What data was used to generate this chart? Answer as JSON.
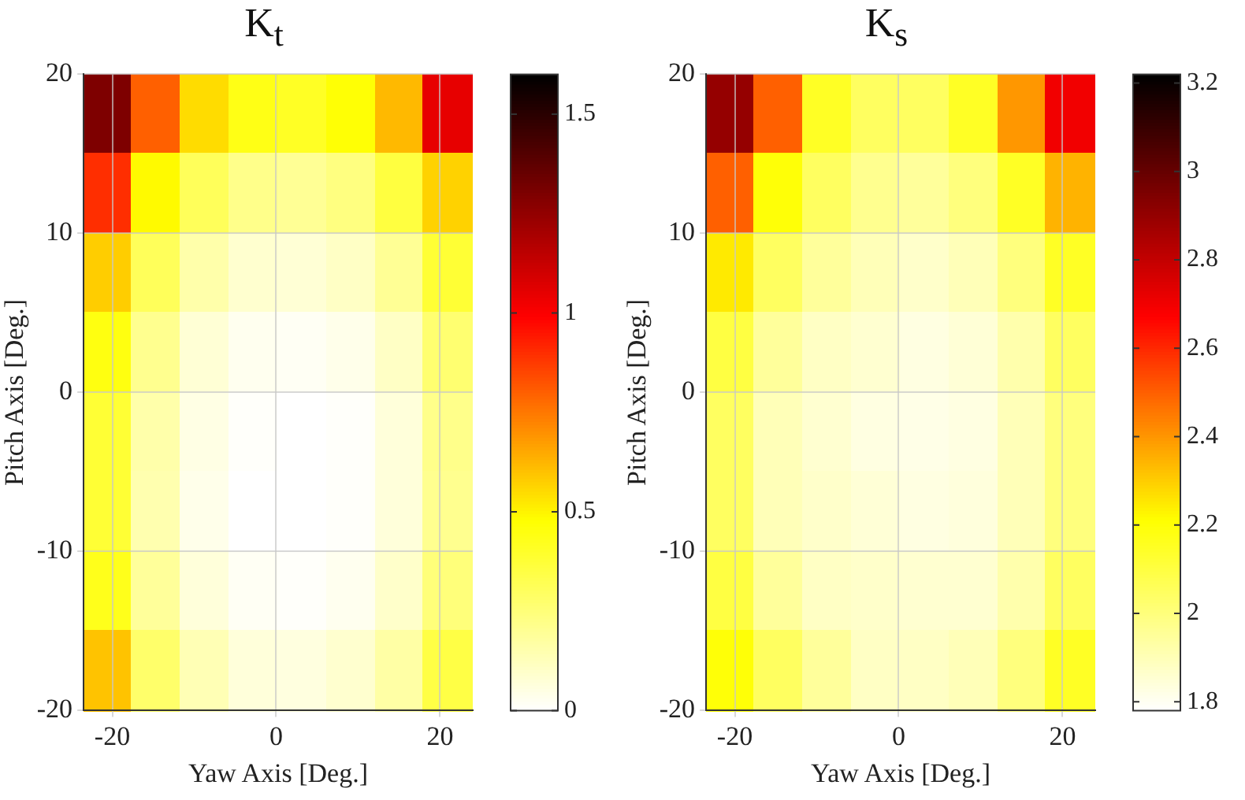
{
  "chart_data": [
    {
      "type": "heatmap",
      "title": "K$_{t}$",
      "xlabel": "Yaw Axis [Deg.]",
      "ylabel": "Pitch Axis [Deg.]",
      "x": [
        -20.5,
        -14.6,
        -8.7,
        -2.7,
        3.2,
        9.2,
        15.1,
        21.0
      ],
      "y": [
        17.5,
        12.5,
        7.5,
        2.5,
        -2.5,
        -7.5,
        -12.5,
        -17.5
      ],
      "cells": [
        [
          1.3,
          0.8,
          0.55,
          0.44,
          0.41,
          0.47,
          0.62,
          1.05
        ],
        [
          0.9,
          0.49,
          0.31,
          0.22,
          0.2,
          0.24,
          0.36,
          0.57
        ],
        [
          0.58,
          0.31,
          0.16,
          0.09,
          0.08,
          0.11,
          0.2,
          0.38
        ],
        [
          0.45,
          0.21,
          0.08,
          0.03,
          0.02,
          0.04,
          0.11,
          0.27
        ],
        [
          0.38,
          0.16,
          0.05,
          0.01,
          0,
          0.01,
          0.07,
          0.22
        ],
        [
          0.38,
          0.15,
          0.04,
          0,
          0,
          0.01,
          0.07,
          0.21
        ],
        [
          0.43,
          0.19,
          0.07,
          0.02,
          0.01,
          0.03,
          0.1,
          0.25
        ],
        [
          0.6,
          0.28,
          0.14,
          0.07,
          0.06,
          0.09,
          0.17,
          0.35
        ]
      ],
      "xlim": [
        -23.5,
        24
      ],
      "ylim": [
        -20,
        20
      ],
      "xticks": [
        -20,
        0,
        20
      ],
      "yticks": [
        -20,
        -10,
        0,
        10,
        20
      ],
      "clim": [
        0,
        1.6
      ],
      "cticks": [
        0,
        0.5,
        1,
        1.5
      ],
      "grid": true
    },
    {
      "type": "heatmap",
      "title": "K$_{s}$",
      "xlabel": "Yaw Axis [Deg.]",
      "ylabel": "Pitch Axis [Deg.]",
      "x": [
        -20.5,
        -14.6,
        -8.7,
        -2.7,
        3.2,
        9.2,
        15.1,
        21.0
      ],
      "y": [
        17.5,
        12.5,
        7.5,
        2.5,
        -2.5,
        -7.5,
        -12.5,
        -17.5
      ],
      "cells": [
        [
          2.9,
          2.5,
          2.15,
          2.05,
          2.05,
          2.15,
          2.4,
          2.7
        ],
        [
          2.5,
          2.2,
          2.05,
          1.97,
          1.95,
          2.0,
          2.15,
          2.35
        ],
        [
          2.25,
          2.05,
          1.95,
          1.9,
          1.87,
          1.9,
          2.0,
          2.15
        ],
        [
          2.1,
          1.95,
          1.88,
          1.86,
          1.83,
          1.85,
          1.92,
          2.05
        ],
        [
          2.05,
          1.9,
          1.86,
          1.83,
          1.82,
          1.83,
          1.9,
          2.0
        ],
        [
          2.05,
          1.9,
          1.87,
          1.85,
          1.83,
          1.84,
          1.9,
          2.0
        ],
        [
          2.1,
          1.95,
          1.88,
          1.87,
          1.86,
          1.86,
          1.92,
          2.05
        ],
        [
          2.2,
          2.05,
          1.95,
          1.88,
          1.88,
          1.9,
          2.0,
          2.15
        ]
      ],
      "xlim": [
        -23.5,
        24
      ],
      "ylim": [
        -20,
        20
      ],
      "xticks": [
        -20,
        0,
        20
      ],
      "yticks": [
        -20,
        -10,
        0,
        10,
        20
      ],
      "clim": [
        1.78,
        3.22
      ],
      "cticks": [
        1.8,
        2,
        2.2,
        2.4,
        2.6,
        2.8,
        3,
        3.2
      ],
      "grid": true
    }
  ]
}
